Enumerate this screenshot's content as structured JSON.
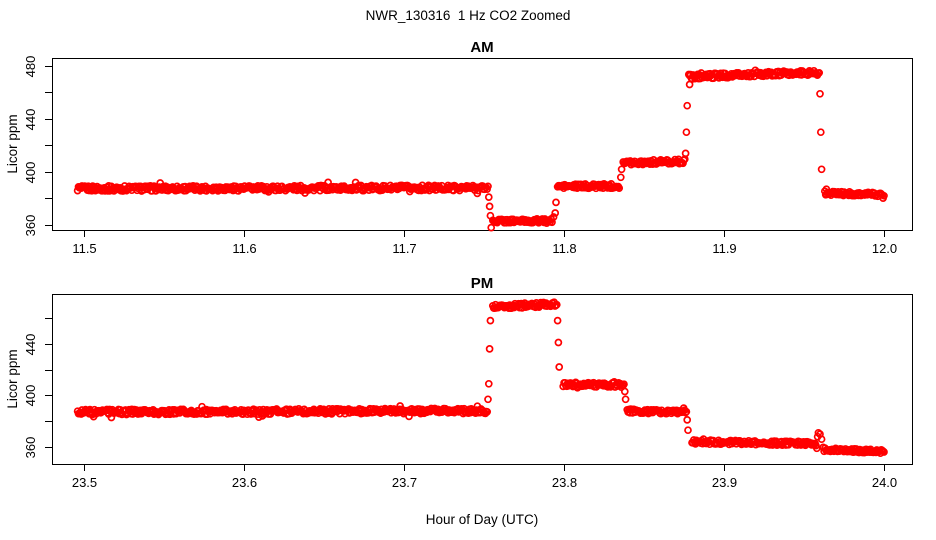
{
  "main_title": "NWR_130316  1 Hz CO2 Zoomed",
  "style": {
    "point_color": "#FF0000",
    "axis_color": "#000000",
    "background": "#FFFFFF"
  },
  "segments_format": "[t_start_hr, t_end_hr, ppm_start, ppm_end, jitter_ppm]",
  "chart_data": [
    {
      "type": "scatter",
      "title": "AM",
      "ylabel": "Licor ppm",
      "xlabel": "",
      "xlim": [
        11.48,
        12.0175
      ],
      "ylim": [
        356.2,
        486
      ],
      "x_tick_values": [
        11.5,
        11.6,
        11.7,
        11.8,
        11.9,
        12.0
      ],
      "x_tick_labels": [
        "11.5",
        "11.6",
        "11.7",
        "11.8",
        "11.9",
        "12.0"
      ],
      "y_tick_labeled_values": [
        360,
        400,
        440,
        480
      ],
      "y_tick_labels": [
        "360",
        "400",
        "440",
        "480"
      ],
      "y_tick_minor_values": [
        380,
        420,
        460
      ],
      "grid": false,
      "series": [
        {
          "name": "1 Hz CO2",
          "marker": "open-circle",
          "segments": [
            [
              11.496,
              11.7525,
              387.5,
              388.0,
              2.0
            ],
            [
              11.7555,
              11.7925,
              363.0,
              363.0,
              1.6
            ],
            [
              11.796,
              11.8345,
              389.0,
              389.5,
              1.7
            ],
            [
              11.837,
              11.8755,
              407.0,
              408.0,
              1.7
            ],
            [
              11.878,
              11.9595,
              472.0,
              475.0,
              1.9
            ],
            [
              11.963,
              12.0,
              384.0,
              383.0,
              1.5
            ]
          ],
          "transition_points": [
            [
              11.753,
              381
            ],
            [
              11.7535,
              374
            ],
            [
              11.754,
              367
            ],
            [
              11.7545,
              358
            ],
            [
              11.7935,
              366
            ],
            [
              11.7945,
              369
            ],
            [
              11.795,
              377
            ],
            [
              11.8355,
              396
            ],
            [
              11.836,
              402
            ],
            [
              11.876,
              414
            ],
            [
              11.8765,
              430
            ],
            [
              11.877,
              450
            ],
            [
              11.8785,
              466
            ],
            [
              11.96,
              459
            ],
            [
              11.9605,
              430
            ],
            [
              11.961,
              402
            ],
            [
              11.964,
              387
            ]
          ]
        }
      ]
    },
    {
      "type": "scatter",
      "title": "PM",
      "ylabel": "Licor ppm",
      "xlabel": "Hour of Day (UTC)",
      "xlim": [
        23.48,
        24.0175
      ],
      "ylim": [
        346.8,
        478.6
      ],
      "x_tick_values": [
        23.5,
        23.6,
        23.7,
        23.8,
        23.9,
        24.0
      ],
      "x_tick_labels": [
        "23.5",
        "23.6",
        "23.7",
        "23.8",
        "23.9",
        "24.0"
      ],
      "y_tick_labeled_values": [
        360,
        400,
        440
      ],
      "y_tick_labels": [
        "360",
        "400",
        "440"
      ],
      "y_tick_minor_values": [
        380,
        420,
        460
      ],
      "grid": false,
      "series": [
        {
          "name": "1 Hz CO2",
          "marker": "open-circle",
          "segments": [
            [
              23.496,
              23.752,
              387.0,
              388.0,
              2.0
            ],
            [
              23.7555,
              23.7955,
              469.0,
              470.5,
              1.9
            ],
            [
              23.7995,
              23.8375,
              408.5,
              408.0,
              1.7
            ],
            [
              23.8395,
              23.8765,
              388.0,
              387.0,
              1.7
            ],
            [
              23.88,
              23.9575,
              364.0,
              362.5,
              1.6
            ],
            [
              23.962,
              24.0,
              358.0,
              356.5,
              1.5
            ]
          ],
          "transition_points": [
            [
              23.7525,
              397
            ],
            [
              23.753,
              409
            ],
            [
              23.7535,
              436
            ],
            [
              23.754,
              458
            ],
            [
              23.796,
              458
            ],
            [
              23.7965,
              441
            ],
            [
              23.797,
              422
            ],
            [
              23.838,
              403
            ],
            [
              23.8385,
              397
            ],
            [
              23.877,
              381
            ],
            [
              23.8775,
              373
            ],
            [
              23.958,
              359
            ],
            [
              23.9585,
              368
            ],
            [
              23.959,
              371
            ],
            [
              23.96,
              370
            ],
            [
              23.961,
              366
            ]
          ]
        }
      ]
    }
  ]
}
